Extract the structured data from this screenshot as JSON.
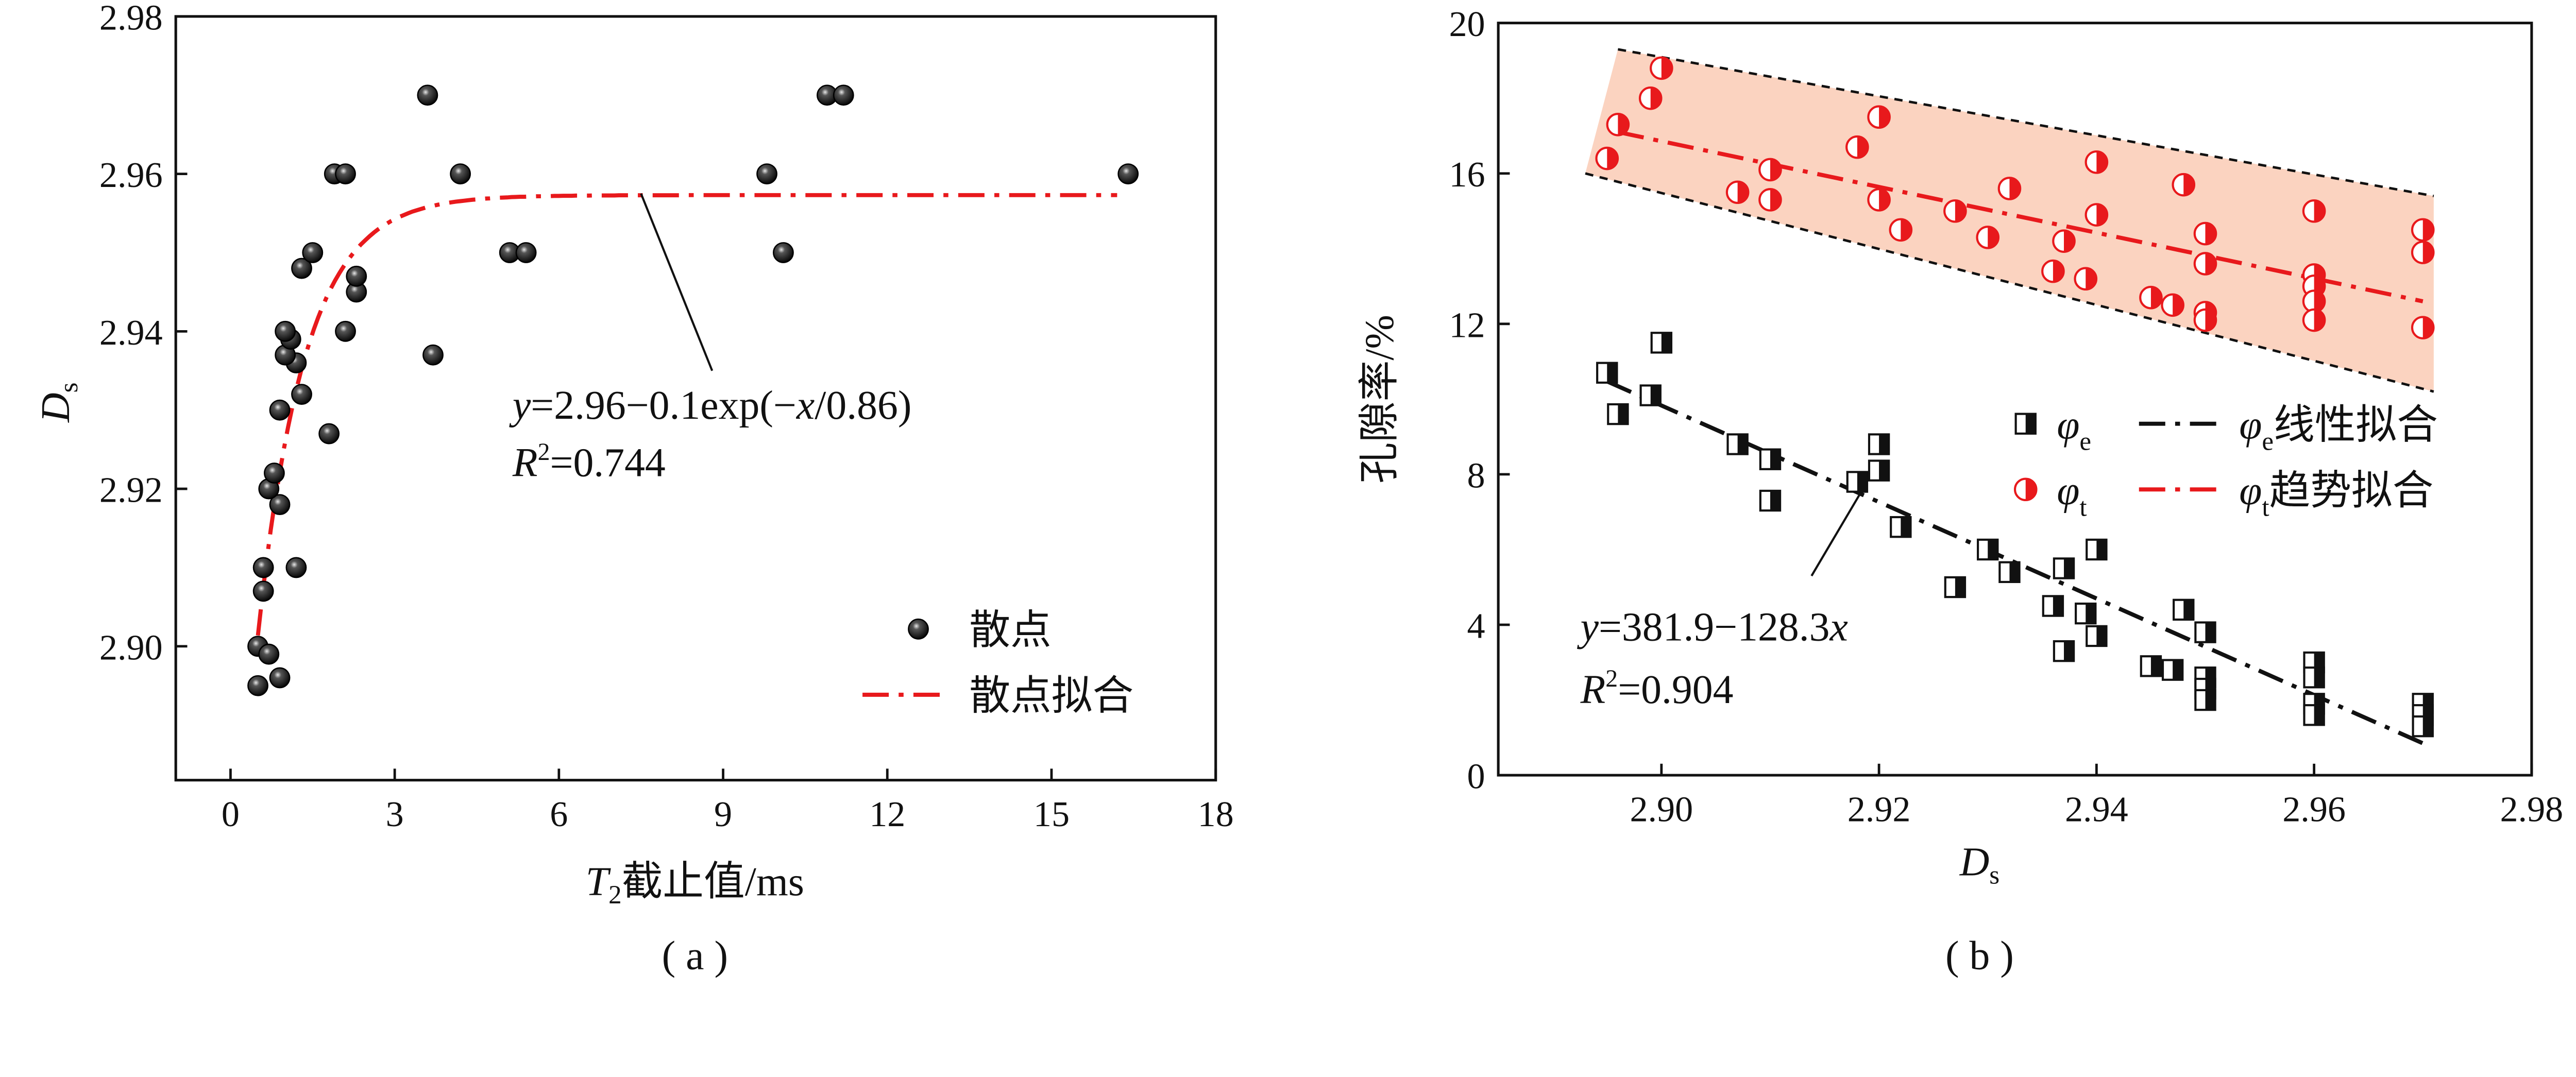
{
  "chart_data": [
    {
      "type": "scatter",
      "panel_label": "( a )",
      "xlabel": {
        "main": "T",
        "sub": "2",
        "rest": "截止值/ms"
      },
      "ylabel": {
        "main": "D",
        "sub": "s"
      },
      "xlim": [
        -1,
        18
      ],
      "ylim": [
        2.883,
        2.98
      ],
      "xticks": [
        0,
        3,
        6,
        9,
        12,
        15,
        18
      ],
      "yticks": [
        2.9,
        2.92,
        2.94,
        2.96,
        2.98
      ],
      "grid": false,
      "legend_placement": "bottom-right",
      "legend": [
        "散点",
        "散点拟合"
      ],
      "colors": {
        "points": "#1a1a1a",
        "fit": "#e8191c"
      },
      "series": [
        {
          "name": "散点",
          "points": [
            [
              0.5,
              2.895
            ],
            [
              0.5,
              2.9
            ],
            [
              0.7,
              2.899
            ],
            [
              0.9,
              2.896
            ],
            [
              0.6,
              2.907
            ],
            [
              0.6,
              2.91
            ],
            [
              1.2,
              2.91
            ],
            [
              0.9,
              2.918
            ],
            [
              0.7,
              2.92
            ],
            [
              0.8,
              2.922
            ],
            [
              0.9,
              2.93
            ],
            [
              1.2,
              2.936
            ],
            [
              1.0,
              2.937
            ],
            [
              1.3,
              2.932
            ],
            [
              1.1,
              2.939
            ],
            [
              1.0,
              2.94
            ],
            [
              1.8,
              2.927
            ],
            [
              2.1,
              2.94
            ],
            [
              2.3,
              2.945
            ],
            [
              2.3,
              2.947
            ],
            [
              1.3,
              2.948
            ],
            [
              1.5,
              2.95
            ],
            [
              1.9,
              2.96
            ],
            [
              2.1,
              2.96
            ],
            [
              3.7,
              2.937
            ],
            [
              3.6,
              2.97
            ],
            [
              4.2,
              2.96
            ],
            [
              5.1,
              2.95
            ],
            [
              5.4,
              2.95
            ],
            [
              9.8,
              2.96
            ],
            [
              10.1,
              2.95
            ],
            [
              10.9,
              2.97
            ],
            [
              11.2,
              2.97
            ],
            [
              16.4,
              2.96
            ]
          ]
        },
        {
          "name": "散点拟合",
          "model": "exponential",
          "a": 2.9573,
          "b": 0.1,
          "c": 0.86,
          "x_range": [
            0.5,
            16.2
          ]
        }
      ],
      "annotation": {
        "equation": {
          "y": "y",
          "rest": "=2.96−0.1exp(−",
          "x": "x",
          "tail": "/0.86)"
        },
        "r2": {
          "r": "R",
          "sup": "2",
          "value": "=0.744"
        }
      }
    },
    {
      "type": "scatter",
      "panel_label": "( b )",
      "xlabel": {
        "main": "D",
        "sub": "s"
      },
      "ylabel": "孔隙率/%",
      "xlim": [
        2.885,
        2.98
      ],
      "ylim": [
        0,
        20
      ],
      "xticks": [
        2.9,
        2.92,
        2.94,
        2.96,
        2.98
      ],
      "yticks": [
        0,
        4,
        8,
        12,
        16,
        20
      ],
      "grid": false,
      "legend_placement": "center-right",
      "colors": {
        "phi_e": "#111111",
        "phi_t": "#e8191c",
        "band": "#fbd3c0",
        "band_edge": "#111111"
      },
      "legend": {
        "phi_e": {
          "sym": "φ",
          "sub": "e"
        },
        "phi_t": {
          "sym": "φ",
          "sub": "t"
        },
        "phi_e_fit": {
          "sym": "φ",
          "sub": "e",
          "text": "线性拟合"
        },
        "phi_t_fit": {
          "sym": "φ",
          "sub": "t",
          "text": "趋势拟合"
        }
      },
      "series": [
        {
          "name": "φe",
          "points": [
            [
              2.895,
              10.7
            ],
            [
              2.896,
              9.6
            ],
            [
              2.899,
              10.1
            ],
            [
              2.9,
              11.5
            ],
            [
              2.907,
              8.8
            ],
            [
              2.91,
              8.4
            ],
            [
              2.91,
              7.3
            ],
            [
              2.918,
              7.8
            ],
            [
              2.92,
              8.8
            ],
            [
              2.92,
              8.1
            ],
            [
              2.922,
              6.6
            ],
            [
              2.927,
              5.0
            ],
            [
              2.93,
              6.0
            ],
            [
              2.932,
              5.4
            ],
            [
              2.936,
              4.5
            ],
            [
              2.937,
              5.5
            ],
            [
              2.937,
              3.3
            ],
            [
              2.939,
              4.3
            ],
            [
              2.94,
              6.0
            ],
            [
              2.94,
              3.7
            ],
            [
              2.945,
              2.9
            ],
            [
              2.947,
              2.8
            ],
            [
              2.948,
              4.4
            ],
            [
              2.95,
              3.8
            ],
            [
              2.95,
              2.6
            ],
            [
              2.95,
              2.3
            ],
            [
              2.95,
              2.0
            ],
            [
              2.96,
              3.0
            ],
            [
              2.96,
              2.6
            ],
            [
              2.96,
              1.9
            ],
            [
              2.96,
              1.6
            ],
            [
              2.97,
              1.9
            ],
            [
              2.97,
              1.6
            ],
            [
              2.97,
              1.3
            ]
          ]
        },
        {
          "name": "φt",
          "points": [
            [
              2.895,
              16.4
            ],
            [
              2.896,
              17.3
            ],
            [
              2.899,
              18.0
            ],
            [
              2.9,
              18.8
            ],
            [
              2.907,
              15.5
            ],
            [
              2.91,
              16.1
            ],
            [
              2.91,
              15.3
            ],
            [
              2.918,
              16.7
            ],
            [
              2.92,
              17.5
            ],
            [
              2.92,
              15.3
            ],
            [
              2.922,
              14.5
            ],
            [
              2.927,
              15.0
            ],
            [
              2.93,
              14.3
            ],
            [
              2.932,
              15.6
            ],
            [
              2.936,
              13.4
            ],
            [
              2.937,
              14.2
            ],
            [
              2.939,
              13.2
            ],
            [
              2.94,
              16.3
            ],
            [
              2.94,
              14.9
            ],
            [
              2.945,
              12.7
            ],
            [
              2.947,
              12.5
            ],
            [
              2.948,
              15.7
            ],
            [
              2.95,
              14.4
            ],
            [
              2.95,
              13.6
            ],
            [
              2.95,
              12.3
            ],
            [
              2.95,
              12.1
            ],
            [
              2.96,
              15.0
            ],
            [
              2.96,
              13.3
            ],
            [
              2.96,
              13.0
            ],
            [
              2.96,
              12.6
            ],
            [
              2.96,
              12.1
            ],
            [
              2.97,
              14.5
            ],
            [
              2.97,
              13.9
            ],
            [
              2.97,
              11.9
            ]
          ]
        },
        {
          "name": "φe线性拟合",
          "model": "linear",
          "intercept": 381.9,
          "slope": -128.3,
          "x_range": [
            2.895,
            2.97
          ]
        },
        {
          "name": "φt趋势拟合",
          "line": [
            [
              2.896,
              17.1
            ],
            [
              2.97,
              12.6
            ]
          ]
        },
        {
          "name": "band",
          "upper": [
            [
              2.896,
              19.3
            ],
            [
              2.971,
              15.4
            ]
          ],
          "lower": [
            [
              2.893,
              16.0
            ],
            [
              2.971,
              10.2
            ]
          ]
        }
      ],
      "annotation": {
        "equation": {
          "y": "y",
          "rest": "=381.9−128.3",
          "x": "x"
        },
        "r2": {
          "r": "R",
          "sup": "2",
          "value": "=0.904"
        }
      }
    }
  ]
}
